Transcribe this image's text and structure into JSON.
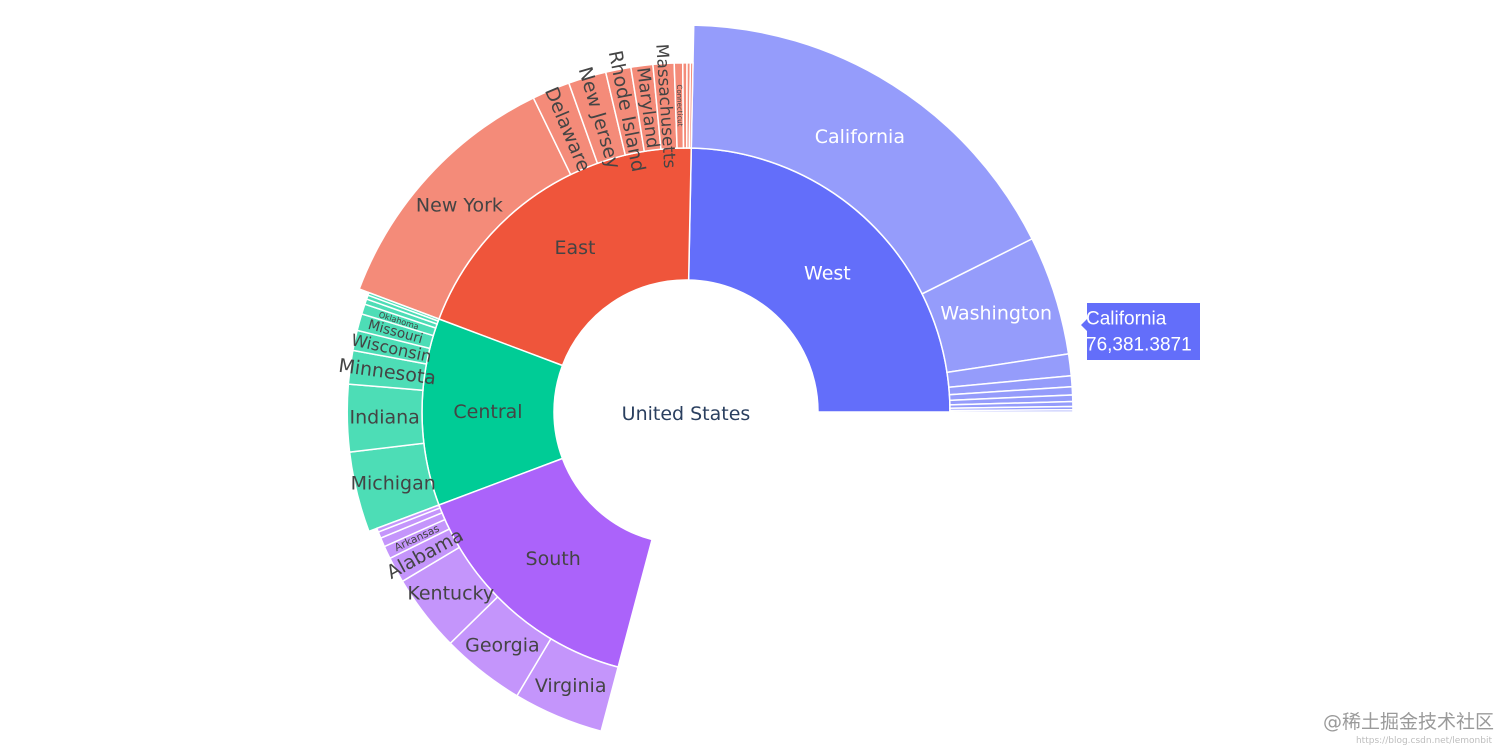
{
  "chart_data": {
    "type": "sunburst",
    "root": "United States",
    "regions": [
      {
        "name": "West",
        "color": "#636efa",
        "child_color": "#959cfb",
        "text_color": "#ffffff",
        "value": 109.0,
        "states": [
          {
            "name": "California",
            "value": 76.4
          },
          {
            "name": "Washington",
            "value": 22.0
          },
          {
            "name": "",
            "value": 4.0
          },
          {
            "name": "",
            "value": 2.0
          },
          {
            "name": "",
            "value": 1.5
          },
          {
            "name": "",
            "value": 1.2
          },
          {
            "name": "",
            "value": 0.9
          },
          {
            "name": "",
            "value": 0.6
          },
          {
            "name": "",
            "value": 0.4
          }
        ]
      },
      {
        "name": "East",
        "color": "#ef553b",
        "child_color": "#f48b79",
        "text_color": "#444444",
        "value": 69.0,
        "states": [
          {
            "name": "New York",
            "value": 31.0
          },
          {
            "name": "Delaware",
            "value": 4.5
          },
          {
            "name": "New Jersey",
            "value": 4.5
          },
          {
            "name": "Rhode Island",
            "value": 3.0
          },
          {
            "name": "Maryland",
            "value": 2.6
          },
          {
            "name": "Massachusetts",
            "value": 2.5
          },
          {
            "name": "Connecticut",
            "value": 1.0
          },
          {
            "name": "",
            "value": 0.5
          },
          {
            "name": "",
            "value": 0.4
          },
          {
            "name": "",
            "value": 0.3
          }
        ]
      },
      {
        "name": "Central",
        "color": "#00cc96",
        "child_color": "#4dddb6",
        "text_color": "#444444",
        "value": 58.0,
        "states": [
          {
            "name": "Michigan",
            "value": 12.0
          },
          {
            "name": "Indiana",
            "value": 10.0
          },
          {
            "name": "Minnesota",
            "value": 5.0
          },
          {
            "name": "Wisconsin",
            "value": 3.0
          },
          {
            "name": "Missouri",
            "value": 2.5
          },
          {
            "name": "Oklahoma",
            "value": 1.5
          },
          {
            "name": "",
            "value": 0.8
          },
          {
            "name": "",
            "value": 0.6
          },
          {
            "name": "",
            "value": 0.4
          }
        ]
      },
      {
        "name": "South",
        "color": "#ab63fa",
        "child_color": "#c495fb",
        "text_color": "#444444",
        "value": 49.0,
        "states": [
          {
            "name": "Virginia",
            "value": 7.0
          },
          {
            "name": "Georgia",
            "value": 6.5
          },
          {
            "name": "Kentucky",
            "value": 6.0
          },
          {
            "name": "Alabama",
            "value": 2.0
          },
          {
            "name": "Arkansas",
            "value": 1.0
          },
          {
            "name": "",
            "value": 0.7
          },
          {
            "name": "",
            "value": 0.5
          },
          {
            "name": "",
            "value": 0.3
          }
        ]
      }
    ],
    "hover": {
      "label": "California",
      "value": "76,381.3871",
      "color": "#636efa"
    }
  },
  "watermark": {
    "text": "@稀土掘金技术社区",
    "url": "https://blog.csdn.net/lemonbit"
  }
}
